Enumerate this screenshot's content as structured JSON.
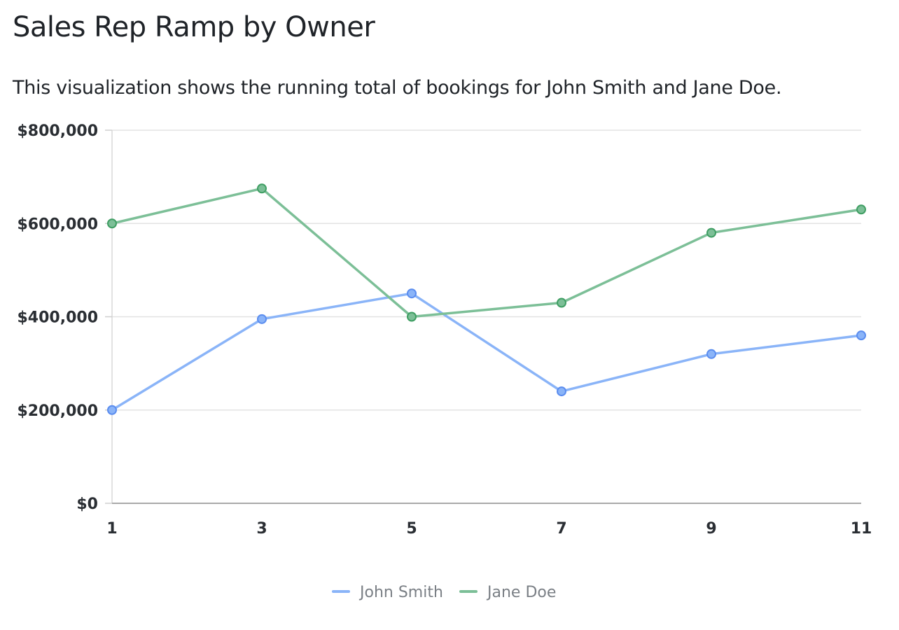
{
  "header": {
    "title": "Sales Rep Ramp by Owner",
    "subtitle": "This visualization shows the running total of bookings for John Smith and Jane Doe."
  },
  "chart_data": {
    "type": "line",
    "title": "Sales Rep Ramp by Owner",
    "xlabel": "",
    "ylabel": "",
    "x": [
      1,
      3,
      5,
      7,
      9,
      11
    ],
    "x_tick_labels": [
      "1",
      "3",
      "5",
      "7",
      "9",
      "11"
    ],
    "ylim": [
      0,
      800000
    ],
    "y_ticks": [
      0,
      200000,
      400000,
      600000,
      800000
    ],
    "y_tick_labels": [
      "$0",
      "$200,000",
      "$400,000",
      "$600,000",
      "$800,000"
    ],
    "grid": true,
    "legend_position": "bottom-center",
    "series": [
      {
        "name": "John Smith",
        "color": "#8ab4f8",
        "marker_color": "#5b8def",
        "values": [
          200000,
          395000,
          450000,
          240000,
          320000,
          360000
        ]
      },
      {
        "name": "Jane Doe",
        "color": "#7cbf97",
        "marker_color": "#3f9e63",
        "values": [
          600000,
          675000,
          400000,
          430000,
          580000,
          630000
        ]
      }
    ]
  }
}
